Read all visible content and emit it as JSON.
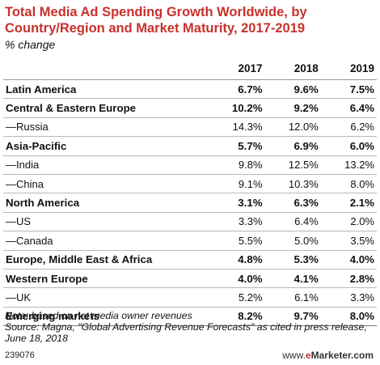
{
  "title": "Total Media Ad Spending Growth Worldwide, by Country/Region and Market Maturity, 2017-2019",
  "subtitle": "% change",
  "columns": [
    "",
    "2017",
    "2018",
    "2019"
  ],
  "rows": [
    {
      "label": "Latin America",
      "v2017": "6.7%",
      "v2018": "9.6%",
      "v2019": "7.5%",
      "style": "bold"
    },
    {
      "label": "Central & Eastern Europe",
      "v2017": "10.2%",
      "v2018": "9.2%",
      "v2019": "6.4%",
      "style": "bold"
    },
    {
      "label": "—Russia",
      "v2017": "14.3%",
      "v2018": "12.0%",
      "v2019": "6.2%",
      "style": "sub"
    },
    {
      "label": "Asia-Pacific",
      "v2017": "5.7%",
      "v2018": "6.9%",
      "v2019": "6.0%",
      "style": "bold"
    },
    {
      "label": "—India",
      "v2017": "9.8%",
      "v2018": "12.5%",
      "v2019": "13.2%",
      "style": "sub"
    },
    {
      "label": "—China",
      "v2017": "9.1%",
      "v2018": "10.3%",
      "v2019": "8.0%",
      "style": "sub"
    },
    {
      "label": "North America",
      "v2017": "3.1%",
      "v2018": "6.3%",
      "v2019": "2.1%",
      "style": "bold"
    },
    {
      "label": "—US",
      "v2017": "3.3%",
      "v2018": "6.4%",
      "v2019": "2.0%",
      "style": "sub"
    },
    {
      "label": "—Canada",
      "v2017": "5.5%",
      "v2018": "5.0%",
      "v2019": "3.5%",
      "style": "sub"
    },
    {
      "label": "Europe, Middle East & Africa",
      "v2017": "4.8%",
      "v2018": "5.3%",
      "v2019": "4.0%",
      "style": "bold"
    },
    {
      "label": "Western Europe",
      "v2017": "4.0%",
      "v2018": "4.1%",
      "v2019": "2.8%",
      "style": "bold"
    },
    {
      "label": "—UK",
      "v2017": "5.2%",
      "v2018": "6.1%",
      "v2019": "3.3%",
      "style": "sub"
    },
    {
      "label": "Emerging markets",
      "v2017": "8.2%",
      "v2018": "9.7%",
      "v2019": "8.0%",
      "style": "bold"
    }
  ],
  "note": "Note: based on net media owner revenues",
  "source": "Source: Magna, \"Global Advertising Revenue Forecasts\" as cited in press release, June 18, 2018",
  "chart_id": "239076",
  "brand": "www.eMarketer.com",
  "colors": {
    "title": "#c8312b",
    "text": "#111111",
    "rule": "#b8b8b8"
  }
}
